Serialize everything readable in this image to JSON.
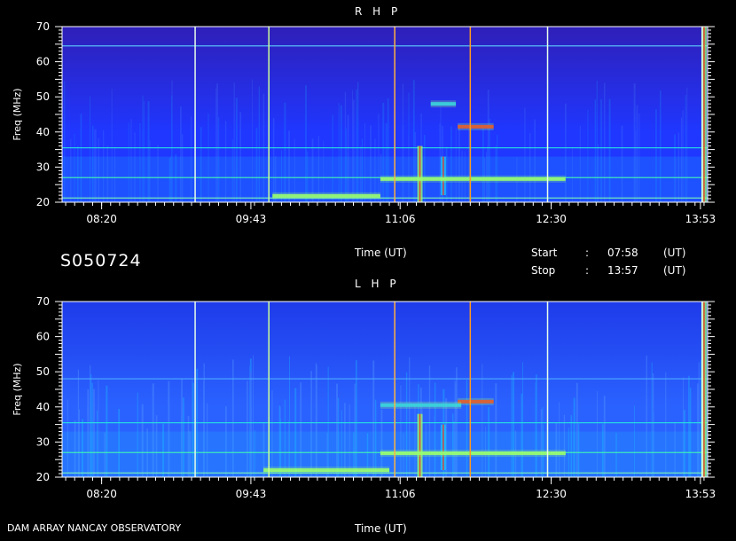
{
  "header": {
    "session_id": "S050724",
    "start_label": "Start",
    "start_sep": ":",
    "start_time": "07:58",
    "start_unit": "(UT)",
    "stop_label": "Stop",
    "stop_sep": ":",
    "stop_time": "13:57",
    "stop_unit": "(UT)"
  },
  "footer": {
    "instrument": "DAM ARRAY  NANCAY OBSERVATORY"
  },
  "chart_data": [
    {
      "type": "heatmap",
      "title": "R H P",
      "xlabel": "Time (UT)",
      "ylabel": "Freq (MHz)",
      "xticklabels": [
        "08:20",
        "09:43",
        "11:06",
        "12:30",
        "13:53"
      ],
      "xticks_minutes": [
        500,
        583,
        666,
        750,
        833
      ],
      "xlim_minutes": [
        478,
        837
      ],
      "yticks": [
        20,
        30,
        40,
        50,
        60,
        70
      ],
      "ylim": [
        20,
        70
      ],
      "colors": {
        "background": "#2f1fb8",
        "low": "#1f37ff",
        "mid": "#19c8ff",
        "high": "#9aff6e",
        "peak": "#ff2a10"
      },
      "markers": [
        {
          "t": 552,
          "color": "#e8ffe8"
        },
        {
          "t": 593,
          "color": "#ccff99"
        },
        {
          "t": 663,
          "color": "#ffb040"
        },
        {
          "t": 705,
          "color": "#ff9a20"
        },
        {
          "t": 748,
          "color": "#e8ffe8"
        },
        {
          "t": 834,
          "color": "#e8ffe8"
        }
      ],
      "hlines": [
        {
          "f": 64.5,
          "color": "#5fd8ff"
        },
        {
          "f": 35.5,
          "color": "#27e8e0"
        },
        {
          "f": 27,
          "color": "#42ffb0"
        },
        {
          "f": 21.2,
          "color": "#7dffb0"
        }
      ],
      "features": [
        {
          "kind": "burst-v",
          "t": 677,
          "f0": 20,
          "f1": 36,
          "intensity": "high"
        },
        {
          "kind": "burst-v",
          "t": 690,
          "f0": 22,
          "f1": 33,
          "intensity": "mid"
        },
        {
          "kind": "burst-v",
          "t": 835,
          "f0": 20,
          "f1": 70,
          "intensity": "high"
        },
        {
          "kind": "patch",
          "t0": 698,
          "t1": 718,
          "f": 41.5,
          "intensity": "peak"
        },
        {
          "kind": "patch",
          "t0": 683,
          "t1": 697,
          "f": 48,
          "intensity": "mid"
        },
        {
          "kind": "patch",
          "t0": 655,
          "t1": 758,
          "f": 26.6,
          "intensity": "high"
        },
        {
          "kind": "patch",
          "t0": 595,
          "t1": 655,
          "f": 21.8,
          "intensity": "high"
        }
      ]
    },
    {
      "type": "heatmap",
      "title": "L H P",
      "xlabel": "Time (UT)",
      "ylabel": "Freq (MHz)",
      "xticklabels": [
        "08:20",
        "09:43",
        "11:06",
        "12:30",
        "13:53"
      ],
      "xticks_minutes": [
        500,
        583,
        666,
        750,
        833
      ],
      "xlim_minutes": [
        478,
        837
      ],
      "yticks": [
        20,
        30,
        40,
        50,
        60,
        70
      ],
      "ylim": [
        20,
        70
      ],
      "colors": {
        "background": "#1f3bea",
        "low": "#2a62ff",
        "mid": "#19c8ff",
        "high": "#9aff6e",
        "peak": "#ff2a10"
      },
      "markers": [
        {
          "t": 552,
          "color": "#e8ffe8"
        },
        {
          "t": 593,
          "color": "#ccff99"
        },
        {
          "t": 663,
          "color": "#ffb040"
        },
        {
          "t": 705,
          "color": "#ff9a20"
        },
        {
          "t": 748,
          "color": "#e8ffe8"
        },
        {
          "t": 834,
          "color": "#e8ffe8"
        }
      ],
      "hlines": [
        {
          "f": 48,
          "color": "#4fb0ff"
        },
        {
          "f": 35.5,
          "color": "#27e8e0"
        },
        {
          "f": 27,
          "color": "#42ffb0"
        },
        {
          "f": 21.2,
          "color": "#7dffb0"
        }
      ],
      "features": [
        {
          "kind": "burst-v",
          "t": 677,
          "f0": 20,
          "f1": 38,
          "intensity": "high"
        },
        {
          "kind": "burst-v",
          "t": 690,
          "f0": 22,
          "f1": 35,
          "intensity": "mid"
        },
        {
          "kind": "burst-v",
          "t": 835,
          "f0": 20,
          "f1": 70,
          "intensity": "high"
        },
        {
          "kind": "patch",
          "t0": 698,
          "t1": 718,
          "f": 41.5,
          "intensity": "peak"
        },
        {
          "kind": "patch",
          "t0": 655,
          "t1": 700,
          "f": 40.5,
          "intensity": "mid"
        },
        {
          "kind": "patch",
          "t0": 655,
          "t1": 758,
          "f": 26.8,
          "intensity": "high"
        },
        {
          "kind": "patch",
          "t0": 590,
          "t1": 660,
          "f": 22,
          "intensity": "high"
        }
      ]
    }
  ]
}
